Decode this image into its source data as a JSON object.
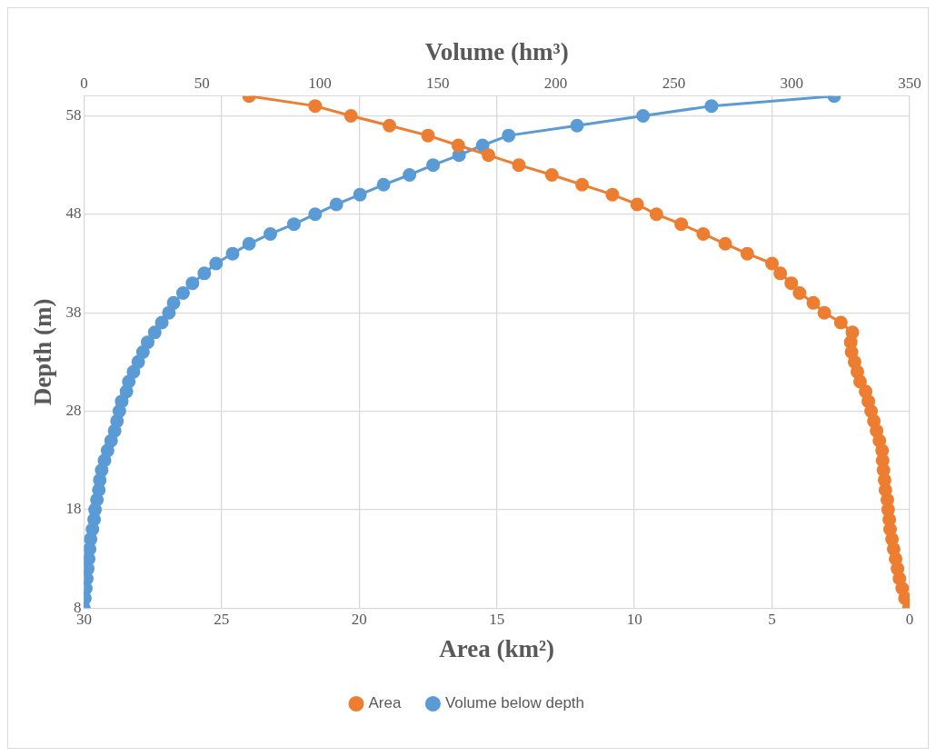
{
  "chart_data": {
    "type": "line",
    "xlabel": "Area (km²)",
    "x2label": "Volume (hm³)",
    "ylabel": "Depth (m)",
    "xlim": [
      30,
      0
    ],
    "xticks": [
      30,
      25,
      20,
      15,
      10,
      5,
      0
    ],
    "x2lim": [
      0,
      350
    ],
    "x2ticks": [
      0,
      50,
      100,
      150,
      200,
      250,
      300,
      350
    ],
    "ylim": [
      8,
      60
    ],
    "yticks": [
      8,
      18,
      28,
      38,
      48,
      58
    ],
    "grid": true,
    "legend": "bottom",
    "marker": "circle",
    "series": [
      {
        "name": "Area",
        "color": "#ed7d31",
        "x": [
          24.0,
          21.6,
          20.3,
          18.9,
          17.5,
          16.4,
          15.3,
          14.2,
          13.0,
          11.9,
          10.8,
          9.9,
          9.2,
          8.3,
          7.5,
          6.7,
          5.9,
          5.0,
          4.7,
          4.3,
          4.0,
          3.5,
          3.1,
          2.5,
          2.08,
          2.14,
          2.11,
          2.0,
          1.9,
          1.8,
          1.6,
          1.5,
          1.4,
          1.3,
          1.2,
          1.1,
          1.0,
          0.98,
          0.95,
          0.91,
          0.88,
          0.81,
          0.78,
          0.74,
          0.71,
          0.64,
          0.58,
          0.51,
          0.44,
          0.37,
          0.27,
          0.17,
          0.03
        ],
        "values": [
          60,
          59,
          58,
          57,
          56,
          55,
          54,
          53,
          52,
          51,
          50,
          49,
          48,
          47,
          46,
          45,
          44,
          43,
          42,
          41,
          40,
          39,
          38,
          37,
          36,
          35,
          34,
          33,
          32,
          31,
          30,
          29,
          28,
          27,
          26,
          25,
          24,
          23,
          22,
          21,
          20,
          19,
          18,
          17,
          16,
          15,
          14,
          13,
          12,
          11,
          10,
          9,
          8
        ]
      },
      {
        "name": "Volume below depth",
        "color": "#5b9bd5",
        "axis": "x2",
        "x": [
          318,
          266,
          237,
          209,
          180,
          169,
          159,
          148,
          138,
          127,
          117,
          107,
          98,
          89,
          79,
          70,
          63,
          56,
          51,
          46,
          42,
          38,
          36,
          33,
          30,
          27,
          25,
          23,
          21,
          19,
          18,
          16,
          15,
          14,
          13,
          11.5,
          10,
          8.7,
          7.5,
          6.7,
          6.3,
          5.5,
          4.7,
          4.3,
          3.6,
          2.8,
          2.4,
          2.0,
          1.6,
          1.2,
          0.8,
          0.4,
          0
        ],
        "values": [
          60,
          59,
          58,
          57,
          56,
          55,
          54,
          53,
          52,
          51,
          50,
          49,
          48,
          47,
          46,
          45,
          44,
          43,
          42,
          41,
          40,
          39,
          38,
          37,
          36,
          35,
          34,
          33,
          32,
          31,
          30,
          29,
          28,
          27,
          26,
          25,
          24,
          23,
          22,
          21,
          20,
          19,
          18,
          17,
          16,
          15,
          14,
          13,
          12,
          11,
          10,
          9,
          8
        ]
      }
    ]
  }
}
